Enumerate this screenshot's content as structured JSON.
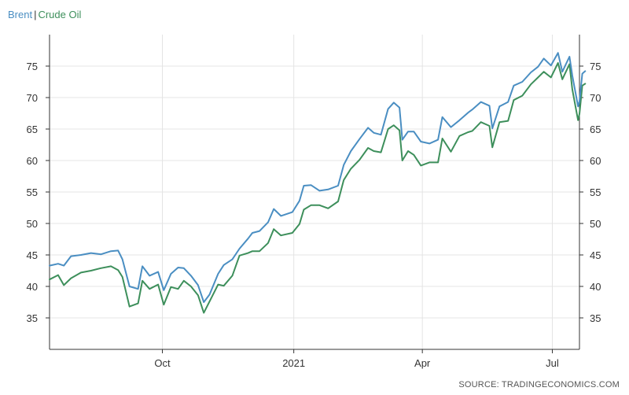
{
  "source": "SOURCE: TRADINGECONOMICS.COM",
  "chart_data": {
    "type": "line",
    "title": "",
    "xlabel": "",
    "ylabel": "",
    "ylim": [
      30,
      80
    ],
    "yticks": [
      35,
      40,
      45,
      50,
      55,
      60,
      65,
      70,
      75
    ],
    "xlim": [
      "2020-07-14",
      "2021-07-20"
    ],
    "xticks": [
      {
        "label": "Oct",
        "date": "2020-10-01"
      },
      {
        "label": "2021",
        "date": "2021-01-01"
      },
      {
        "label": "Apr",
        "date": "2021-04-01"
      },
      {
        "label": "Jul",
        "date": "2021-07-01"
      }
    ],
    "legend": "top-left",
    "grid": true,
    "separator": "|",
    "series": [
      {
        "name": "Brent",
        "color": "#4a8ec2",
        "points": [
          [
            "2020-07-14",
            43.3
          ],
          [
            "2020-07-20",
            43.6
          ],
          [
            "2020-07-24",
            43.3
          ],
          [
            "2020-07-29",
            44.8
          ],
          [
            "2020-08-05",
            45.0
          ],
          [
            "2020-08-12",
            45.3
          ],
          [
            "2020-08-19",
            45.1
          ],
          [
            "2020-08-26",
            45.6
          ],
          [
            "2020-08-31",
            45.7
          ],
          [
            "2020-09-03",
            44.3
          ],
          [
            "2020-09-08",
            40.0
          ],
          [
            "2020-09-14",
            39.6
          ],
          [
            "2020-09-17",
            43.2
          ],
          [
            "2020-09-22",
            41.7
          ],
          [
            "2020-09-28",
            42.3
          ],
          [
            "2020-10-02",
            39.4
          ],
          [
            "2020-10-07",
            42.0
          ],
          [
            "2020-10-12",
            43.0
          ],
          [
            "2020-10-16",
            42.9
          ],
          [
            "2020-10-21",
            41.7
          ],
          [
            "2020-10-26",
            40.2
          ],
          [
            "2020-10-30",
            37.5
          ],
          [
            "2020-11-03",
            38.7
          ],
          [
            "2020-11-09",
            42.0
          ],
          [
            "2020-11-13",
            43.4
          ],
          [
            "2020-11-19",
            44.3
          ],
          [
            "2020-11-24",
            46.0
          ],
          [
            "2020-11-30",
            47.6
          ],
          [
            "2020-12-03",
            48.5
          ],
          [
            "2020-12-08",
            48.8
          ],
          [
            "2020-12-14",
            50.2
          ],
          [
            "2020-12-18",
            52.3
          ],
          [
            "2020-12-23",
            51.2
          ],
          [
            "2020-12-31",
            51.8
          ],
          [
            "2021-01-05",
            53.6
          ],
          [
            "2021-01-08",
            56.0
          ],
          [
            "2021-01-13",
            56.1
          ],
          [
            "2021-01-19",
            55.2
          ],
          [
            "2021-01-25",
            55.4
          ],
          [
            "2021-02-01",
            56.0
          ],
          [
            "2021-02-05",
            59.3
          ],
          [
            "2021-02-10",
            61.5
          ],
          [
            "2021-02-16",
            63.4
          ],
          [
            "2021-02-22",
            65.2
          ],
          [
            "2021-02-26",
            64.4
          ],
          [
            "2021-03-03",
            64.1
          ],
          [
            "2021-03-08",
            68.2
          ],
          [
            "2021-03-12",
            69.2
          ],
          [
            "2021-03-16",
            68.4
          ],
          [
            "2021-03-18",
            63.3
          ],
          [
            "2021-03-22",
            64.6
          ],
          [
            "2021-03-26",
            64.6
          ],
          [
            "2021-03-31",
            63.0
          ],
          [
            "2021-04-06",
            62.7
          ],
          [
            "2021-04-12",
            63.3
          ],
          [
            "2021-04-15",
            66.9
          ],
          [
            "2021-04-21",
            65.3
          ],
          [
            "2021-04-27",
            66.4
          ],
          [
            "2021-05-03",
            67.6
          ],
          [
            "2021-05-06",
            68.1
          ],
          [
            "2021-05-12",
            69.3
          ],
          [
            "2021-05-18",
            68.7
          ],
          [
            "2021-05-20",
            65.1
          ],
          [
            "2021-05-25",
            68.6
          ],
          [
            "2021-05-31",
            69.3
          ],
          [
            "2021-06-04",
            71.9
          ],
          [
            "2021-06-10",
            72.5
          ],
          [
            "2021-06-16",
            74.0
          ],
          [
            "2021-06-21",
            74.9
          ],
          [
            "2021-06-25",
            76.2
          ],
          [
            "2021-06-30",
            75.1
          ],
          [
            "2021-07-05",
            77.1
          ],
          [
            "2021-07-08",
            74.1
          ],
          [
            "2021-07-13",
            76.5
          ],
          [
            "2021-07-15",
            73.5
          ],
          [
            "2021-07-19",
            68.6
          ],
          [
            "2021-07-20",
            69.4
          ],
          [
            "2021-07-22",
            73.8
          ],
          [
            "2021-07-24",
            74.2
          ]
        ]
      },
      {
        "name": "Crude Oil",
        "color": "#3d8f5b",
        "points": [
          [
            "2020-07-14",
            41.1
          ],
          [
            "2020-07-20",
            41.8
          ],
          [
            "2020-07-24",
            40.2
          ],
          [
            "2020-07-29",
            41.3
          ],
          [
            "2020-08-05",
            42.2
          ],
          [
            "2020-08-12",
            42.5
          ],
          [
            "2020-08-19",
            42.9
          ],
          [
            "2020-08-26",
            43.2
          ],
          [
            "2020-08-31",
            42.6
          ],
          [
            "2020-09-03",
            41.5
          ],
          [
            "2020-09-08",
            36.8
          ],
          [
            "2020-09-14",
            37.3
          ],
          [
            "2020-09-17",
            40.9
          ],
          [
            "2020-09-22",
            39.6
          ],
          [
            "2020-09-28",
            40.3
          ],
          [
            "2020-10-02",
            37.1
          ],
          [
            "2020-10-07",
            39.9
          ],
          [
            "2020-10-12",
            39.6
          ],
          [
            "2020-10-16",
            40.9
          ],
          [
            "2020-10-21",
            40.0
          ],
          [
            "2020-10-26",
            38.6
          ],
          [
            "2020-10-30",
            35.8
          ],
          [
            "2020-11-03",
            37.6
          ],
          [
            "2020-11-09",
            40.3
          ],
          [
            "2020-11-13",
            40.1
          ],
          [
            "2020-11-19",
            41.7
          ],
          [
            "2020-11-24",
            44.9
          ],
          [
            "2020-11-30",
            45.3
          ],
          [
            "2020-12-03",
            45.6
          ],
          [
            "2020-12-08",
            45.6
          ],
          [
            "2020-12-14",
            46.9
          ],
          [
            "2020-12-18",
            49.1
          ],
          [
            "2020-12-23",
            48.1
          ],
          [
            "2020-12-31",
            48.5
          ],
          [
            "2021-01-05",
            49.9
          ],
          [
            "2021-01-08",
            52.2
          ],
          [
            "2021-01-13",
            52.9
          ],
          [
            "2021-01-19",
            52.9
          ],
          [
            "2021-01-25",
            52.4
          ],
          [
            "2021-02-01",
            53.5
          ],
          [
            "2021-02-05",
            56.9
          ],
          [
            "2021-02-10",
            58.7
          ],
          [
            "2021-02-16",
            60.1
          ],
          [
            "2021-02-22",
            62.0
          ],
          [
            "2021-02-26",
            61.5
          ],
          [
            "2021-03-03",
            61.3
          ],
          [
            "2021-03-08",
            65.0
          ],
          [
            "2021-03-12",
            65.6
          ],
          [
            "2021-03-16",
            64.8
          ],
          [
            "2021-03-18",
            60.0
          ],
          [
            "2021-03-22",
            61.5
          ],
          [
            "2021-03-26",
            60.9
          ],
          [
            "2021-03-31",
            59.2
          ],
          [
            "2021-04-06",
            59.7
          ],
          [
            "2021-04-12",
            59.7
          ],
          [
            "2021-04-15",
            63.5
          ],
          [
            "2021-04-21",
            61.4
          ],
          [
            "2021-04-27",
            63.9
          ],
          [
            "2021-05-03",
            64.5
          ],
          [
            "2021-05-06",
            64.7
          ],
          [
            "2021-05-12",
            66.1
          ],
          [
            "2021-05-18",
            65.5
          ],
          [
            "2021-05-20",
            62.1
          ],
          [
            "2021-05-25",
            66.1
          ],
          [
            "2021-05-31",
            66.3
          ],
          [
            "2021-06-04",
            69.6
          ],
          [
            "2021-06-10",
            70.3
          ],
          [
            "2021-06-16",
            72.1
          ],
          [
            "2021-06-21",
            73.2
          ],
          [
            "2021-06-25",
            74.1
          ],
          [
            "2021-06-30",
            73.2
          ],
          [
            "2021-07-05",
            75.5
          ],
          [
            "2021-07-08",
            72.9
          ],
          [
            "2021-07-13",
            75.3
          ],
          [
            "2021-07-15",
            71.3
          ],
          [
            "2021-07-19",
            66.4
          ],
          [
            "2021-07-20",
            67.4
          ],
          [
            "2021-07-22",
            71.9
          ],
          [
            "2021-07-24",
            72.2
          ]
        ]
      }
    ]
  }
}
